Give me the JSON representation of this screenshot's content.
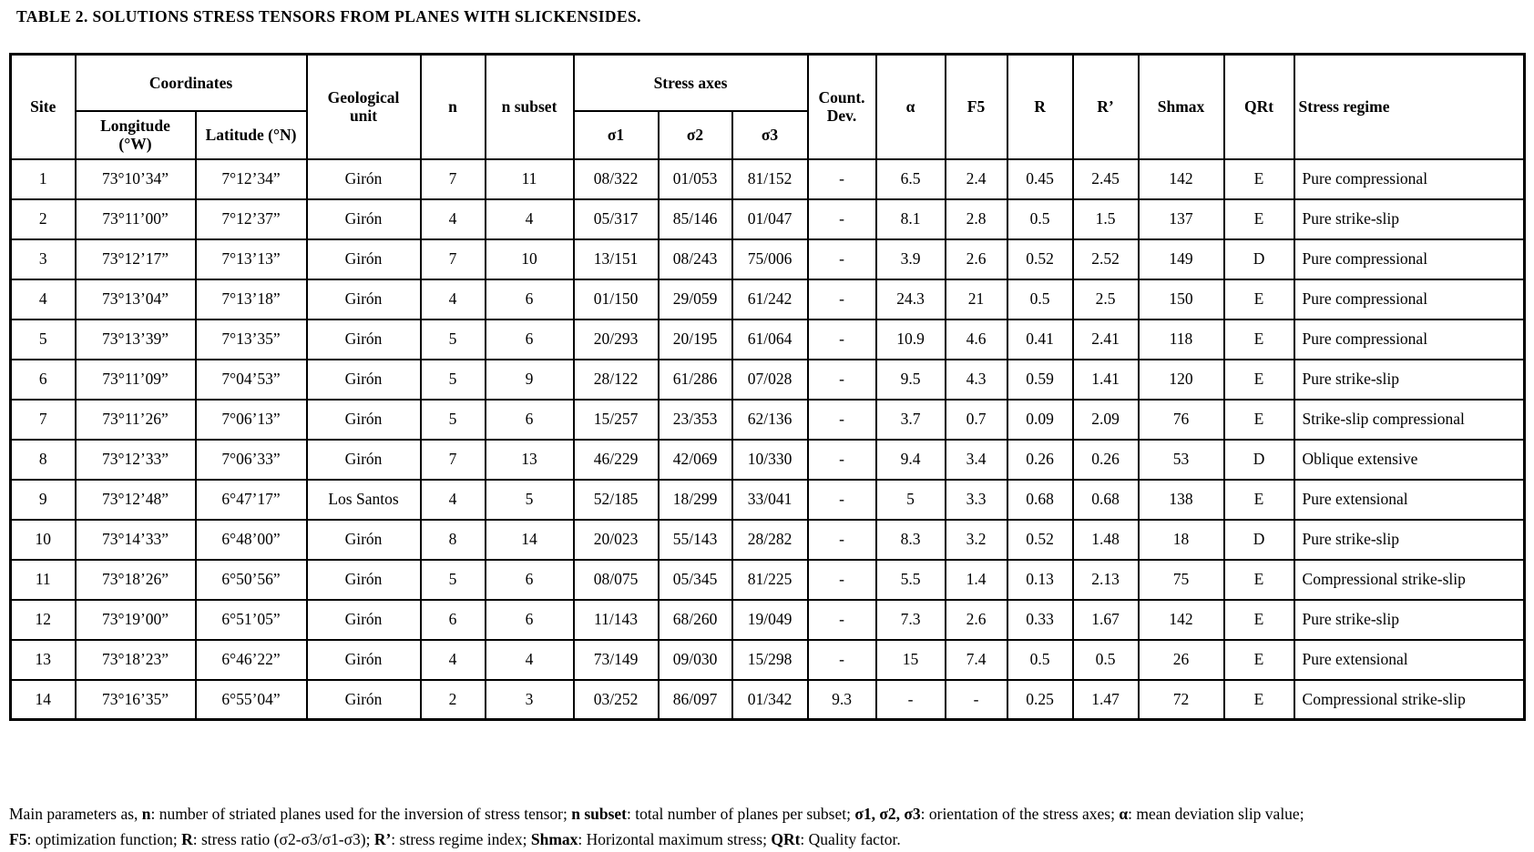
{
  "title": "TABLE 2. SOLUTIONS STRESS TENSORS FROM PLANES WITH SLICKENSIDES.",
  "table": {
    "headers": {
      "site": "Site",
      "coordinates": "Coordinates",
      "longitude": "Longitude (°W)",
      "latitude": "Latitude (°N)",
      "geological_unit": "Geological unit",
      "n": "n",
      "n_subset": "n subset",
      "stress_axes": "Stress axes",
      "sigma1": "σ1",
      "sigma2": "σ2",
      "sigma3": "σ3",
      "count_dev": "Count. Dev.",
      "alpha": "α",
      "f5": "F5",
      "r": "R",
      "r_prime": "R’",
      "shmax": "Shmax",
      "qrt": "QRt",
      "stress_regime": "Stress regime"
    },
    "column_keys": [
      "site",
      "longitude",
      "latitude",
      "geological_unit",
      "n",
      "n_subset",
      "sigma1",
      "sigma2",
      "sigma3",
      "count_dev",
      "alpha",
      "f5",
      "r",
      "r_prime",
      "shmax",
      "qrt",
      "stress_regime"
    ],
    "rows": [
      [
        "1",
        "73°10’34”",
        "7°12’34”",
        "Girón",
        "7",
        "11",
        "08/322",
        "01/053",
        "81/152",
        "-",
        "6.5",
        "2.4",
        "0.45",
        "2.45",
        "142",
        "E",
        "Pure compressional"
      ],
      [
        "2",
        "73°11’00”",
        "7°12’37”",
        "Girón",
        "4",
        "4",
        "05/317",
        "85/146",
        "01/047",
        "-",
        "8.1",
        "2.8",
        "0.5",
        "1.5",
        "137",
        "E",
        "Pure strike-slip"
      ],
      [
        "3",
        "73°12’17”",
        "7°13’13”",
        "Girón",
        "7",
        "10",
        "13/151",
        "08/243",
        "75/006",
        "-",
        "3.9",
        "2.6",
        "0.52",
        "2.52",
        "149",
        "D",
        "Pure compressional"
      ],
      [
        "4",
        "73°13’04”",
        "7°13’18”",
        "Girón",
        "4",
        "6",
        "01/150",
        "29/059",
        "61/242",
        "-",
        "24.3",
        "21",
        "0.5",
        "2.5",
        "150",
        "E",
        "Pure compressional"
      ],
      [
        "5",
        "73°13’39”",
        "7°13’35”",
        "Girón",
        "5",
        "6",
        "20/293",
        "20/195",
        "61/064",
        "-",
        "10.9",
        "4.6",
        "0.41",
        "2.41",
        "118",
        "E",
        "Pure compressional"
      ],
      [
        "6",
        "73°11’09”",
        "7°04’53”",
        "Girón",
        "5",
        "9",
        "28/122",
        "61/286",
        "07/028",
        "-",
        "9.5",
        "4.3",
        "0.59",
        "1.41",
        "120",
        "E",
        "Pure strike-slip"
      ],
      [
        "7",
        "73°11’26”",
        "7°06’13”",
        "Girón",
        "5",
        "6",
        "15/257",
        "23/353",
        "62/136",
        "-",
        "3.7",
        "0.7",
        "0.09",
        "2.09",
        "76",
        "E",
        "Strike-slip compressional"
      ],
      [
        "8",
        "73°12’33”",
        "7°06’33”",
        "Girón",
        "7",
        "13",
        "46/229",
        "42/069",
        "10/330",
        "-",
        "9.4",
        "3.4",
        "0.26",
        "0.26",
        "53",
        "D",
        "Oblique extensive"
      ],
      [
        "9",
        "73°12’48”",
        "6°47’17”",
        "Los Santos",
        "4",
        "5",
        "52/185",
        "18/299",
        "33/041",
        "-",
        "5",
        "3.3",
        "0.68",
        "0.68",
        "138",
        "E",
        "Pure extensional"
      ],
      [
        "10",
        "73°14’33”",
        "6°48’00”",
        "Girón",
        "8",
        "14",
        "20/023",
        "55/143",
        "28/282",
        "-",
        "8.3",
        "3.2",
        "0.52",
        "1.48",
        "18",
        "D",
        "Pure strike-slip"
      ],
      [
        "11",
        "73°18’26”",
        "6°50’56”",
        "Girón",
        "5",
        "6",
        "08/075",
        "05/345",
        "81/225",
        "-",
        "5.5",
        "1.4",
        "0.13",
        "2.13",
        "75",
        "E",
        "Compressional strike-slip"
      ],
      [
        "12",
        "73°19’00”",
        "6°51’05”",
        "Girón",
        "6",
        "6",
        "11/143",
        "68/260",
        "19/049",
        "-",
        "7.3",
        "2.6",
        "0.33",
        "1.67",
        "142",
        "E",
        "Pure strike-slip"
      ],
      [
        "13",
        "73°18’23”",
        "6°46’22”",
        "Girón",
        "4",
        "4",
        "73/149",
        "09/030",
        "15/298",
        "-",
        "15",
        "7.4",
        "0.5",
        "0.5",
        "26",
        "E",
        "Pure extensional"
      ],
      [
        "14",
        "73°16’35”",
        "6°55’04”",
        "Girón",
        "2",
        "3",
        "03/252",
        "86/097",
        "01/342",
        "9.3",
        "-",
        "-",
        "0.25",
        "1.47",
        "72",
        "E",
        "Compressional strike-slip"
      ]
    ]
  },
  "footnote_lines": [
    [
      {
        "text": "Main parameters as, ",
        "bold": false
      },
      {
        "text": "n",
        "bold": true
      },
      {
        "text": ": number of striated planes used for the inversion of stress tensor; ",
        "bold": false
      },
      {
        "text": "n subset",
        "bold": true
      },
      {
        "text": ": total number of planes per subset; ",
        "bold": false
      },
      {
        "text": "σ1, σ2, σ3",
        "bold": true
      },
      {
        "text": ": orientation of the stress axes; ",
        "bold": false
      },
      {
        "text": "α",
        "bold": true
      },
      {
        "text": ": mean deviation slip value;",
        "bold": false
      }
    ],
    [
      {
        "text": "F5",
        "bold": true
      },
      {
        "text": ": optimization function; ",
        "bold": false
      },
      {
        "text": "R",
        "bold": true
      },
      {
        "text": ": stress ratio (σ2-σ3/σ1-σ3); ",
        "bold": false
      },
      {
        "text": "R’",
        "bold": true
      },
      {
        "text": ": stress regime index; ",
        "bold": false
      },
      {
        "text": "Shmax",
        "bold": true
      },
      {
        "text": ": Horizontal maximum stress; ",
        "bold": false
      },
      {
        "text": "QRt",
        "bold": true
      },
      {
        "text": ": Quality factor.",
        "bold": false
      }
    ]
  ]
}
